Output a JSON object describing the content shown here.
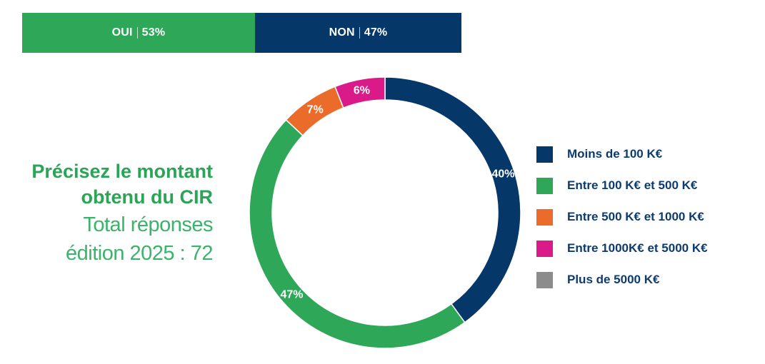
{
  "top_bar": {
    "segments": [
      {
        "label": "OUI",
        "percent": "53%",
        "value": 53,
        "color": "#2ea858"
      },
      {
        "label": "NON",
        "percent": "47%",
        "value": 47,
        "color": "#053768"
      }
    ]
  },
  "title": {
    "line1": "Précisez le montant",
    "line2": "obtenu du CIR",
    "sub1": "Total réponses",
    "sub2": "édition 2025 : 72"
  },
  "chart_data": {
    "type": "pie",
    "variant": "donut",
    "categories": [
      "Moins de 100 K€",
      "Entre 100 K€ et 500 K€",
      "Entre 500 K€ et 1000 K€",
      "Entre 1000K€ et 5000 K€",
      "Plus de 5000 K€"
    ],
    "values": [
      40,
      47,
      7,
      6,
      0
    ],
    "data_labels": [
      "40%",
      "47%",
      "7%",
      "6%",
      ""
    ],
    "colors": [
      "#053768",
      "#2ea858",
      "#eb6b2a",
      "#da1a88",
      "#8c8c8c"
    ],
    "legend_position": "right"
  }
}
